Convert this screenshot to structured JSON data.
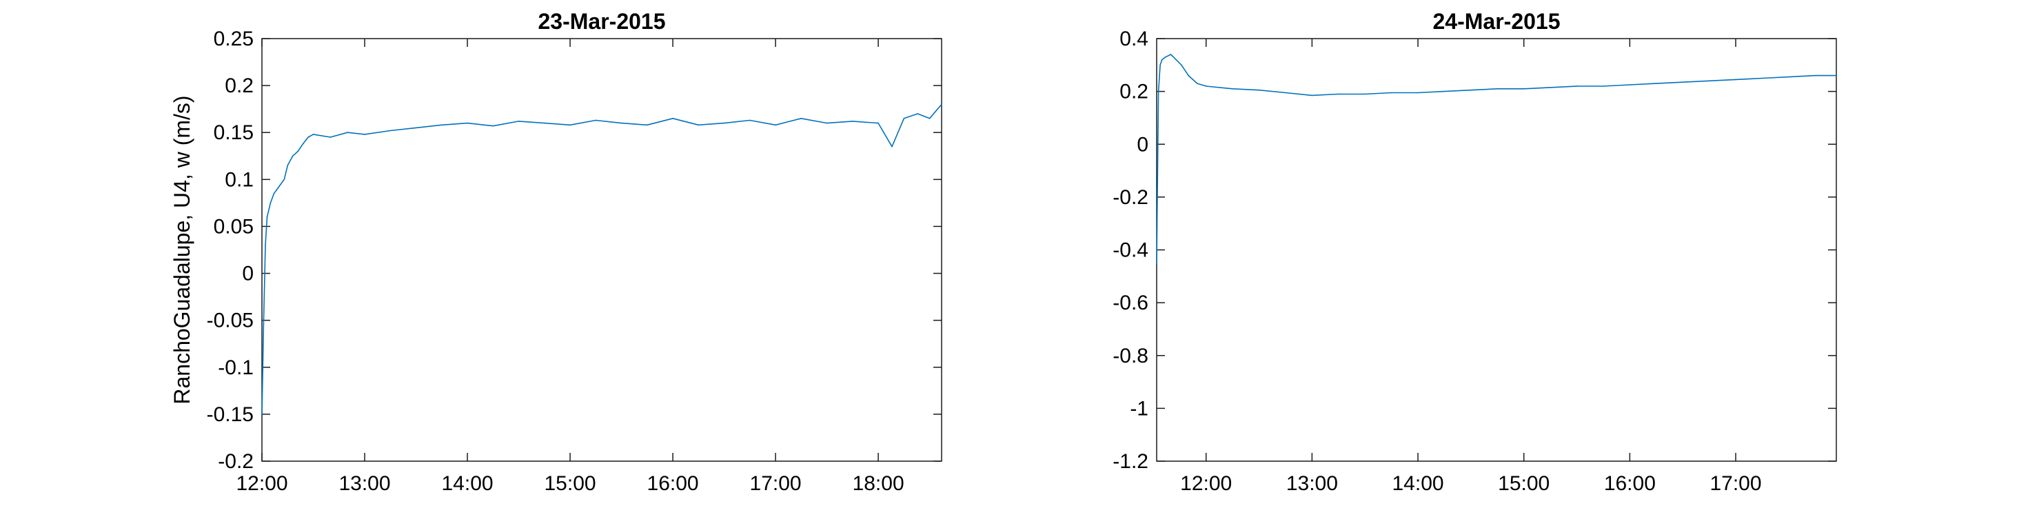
{
  "chart_data": [
    {
      "type": "line",
      "title": "23-Mar-2015",
      "xlabel": "",
      "ylabel": "RanchoGuadalupe, U4, w (m/s)",
      "xlim": [
        "12:00",
        "18:37"
      ],
      "ylim": [
        -0.2,
        0.25
      ],
      "xticks": [
        "12:00",
        "13:00",
        "14:00",
        "15:00",
        "16:00",
        "17:00",
        "18:00"
      ],
      "yticks": [
        "-0.2",
        "-0.15",
        "-0.1",
        "-0.05",
        "0",
        "0.05",
        "0.1",
        "0.15",
        "0.2",
        "0.25"
      ],
      "grid": false,
      "series": [
        {
          "color": "#0072bd",
          "x": [
            "12:00",
            "12:01",
            "12:02",
            "12:03",
            "12:05",
            "12:07",
            "12:09",
            "12:11",
            "12:13",
            "12:15",
            "12:18",
            "12:21",
            "12:24",
            "12:27",
            "12:30",
            "12:40",
            "12:50",
            "13:00",
            "13:15",
            "13:30",
            "13:45",
            "14:00",
            "14:15",
            "14:30",
            "14:45",
            "15:00",
            "15:15",
            "15:30",
            "15:45",
            "16:00",
            "16:15",
            "16:30",
            "16:45",
            "17:00",
            "17:15",
            "17:30",
            "17:45",
            "18:00",
            "18:08",
            "18:15",
            "18:23",
            "18:30",
            "18:37"
          ],
          "values": [
            -0.15,
            -0.05,
            0.03,
            0.06,
            0.075,
            0.085,
            0.09,
            0.095,
            0.1,
            0.115,
            0.125,
            0.13,
            0.138,
            0.145,
            0.148,
            0.145,
            0.15,
            0.148,
            0.152,
            0.155,
            0.158,
            0.16,
            0.157,
            0.162,
            0.16,
            0.158,
            0.163,
            0.16,
            0.158,
            0.165,
            0.158,
            0.16,
            0.163,
            0.158,
            0.165,
            0.16,
            0.162,
            0.16,
            0.135,
            0.165,
            0.17,
            0.165,
            0.18
          ]
        }
      ]
    },
    {
      "type": "line",
      "title": "24-Mar-2015",
      "xlabel": "",
      "ylabel": "",
      "xlim": [
        "11:32",
        "17:57"
      ],
      "ylim": [
        -1.2,
        0.4
      ],
      "xticks": [
        "12:00",
        "13:00",
        "14:00",
        "15:00",
        "16:00",
        "17:00"
      ],
      "yticks": [
        "-1.2",
        "-1",
        "-0.8",
        "-0.6",
        "-0.4",
        "-0.2",
        "0",
        "0.2",
        "0.4"
      ],
      "grid": false,
      "series": [
        {
          "color": "#0072bd",
          "x": [
            "11:32",
            "11:33",
            "11:34",
            "11:35",
            "11:37",
            "11:40",
            "11:43",
            "11:46",
            "11:50",
            "11:55",
            "12:00",
            "12:15",
            "12:30",
            "12:45",
            "13:00",
            "13:15",
            "13:30",
            "13:45",
            "14:00",
            "14:15",
            "14:30",
            "14:45",
            "15:00",
            "15:15",
            "15:30",
            "15:45",
            "16:00",
            "16:15",
            "16:30",
            "16:45",
            "17:00",
            "17:15",
            "17:30",
            "17:45",
            "17:57"
          ],
          "values": [
            -0.45,
            0.2,
            0.3,
            0.32,
            0.33,
            0.34,
            0.32,
            0.3,
            0.26,
            0.23,
            0.22,
            0.21,
            0.205,
            0.195,
            0.185,
            0.19,
            0.19,
            0.195,
            0.195,
            0.2,
            0.205,
            0.21,
            0.21,
            0.215,
            0.22,
            0.22,
            0.225,
            0.23,
            0.235,
            0.24,
            0.245,
            0.25,
            0.255,
            0.26,
            0.26
          ]
        }
      ]
    }
  ]
}
